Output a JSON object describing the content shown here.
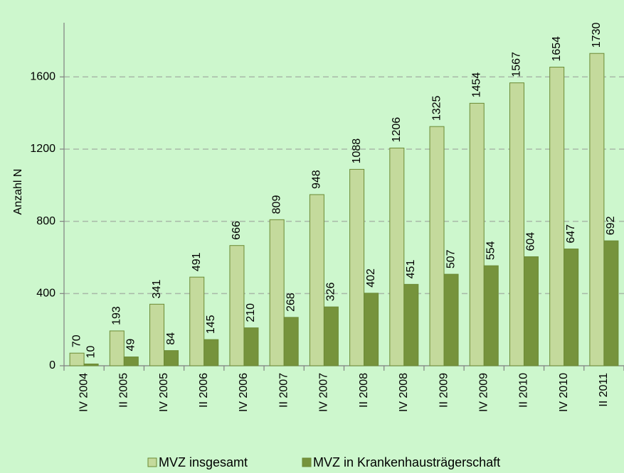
{
  "chart_data": {
    "type": "bar",
    "y_label": "Anzahl N",
    "categories": [
      "IV 2004",
      "II 2005",
      "IV 2005",
      "II 2006",
      "IV 2006",
      "II 2007",
      "IV 2007",
      "II 2008",
      "IV 2008",
      "II 2009",
      "IV 2009",
      "II 2010",
      "IV 2010",
      "II 2011"
    ],
    "series": [
      {
        "name": "MVZ insgesamt",
        "color": "#c4da9c",
        "values": [
          70,
          193,
          341,
          491,
          666,
          809,
          948,
          1088,
          1206,
          1325,
          1454,
          1567,
          1654,
          1730
        ]
      },
      {
        "name": "MVZ in Krankenhausträgerschaft",
        "color": "#76933c",
        "values": [
          10,
          49,
          84,
          145,
          210,
          268,
          326,
          402,
          451,
          507,
          554,
          604,
          647,
          692
        ]
      }
    ],
    "ylim": [
      0,
      1900
    ],
    "yticks": [
      0,
      400,
      800,
      1200,
      1600
    ],
    "grid": true,
    "legend": "bottom"
  }
}
